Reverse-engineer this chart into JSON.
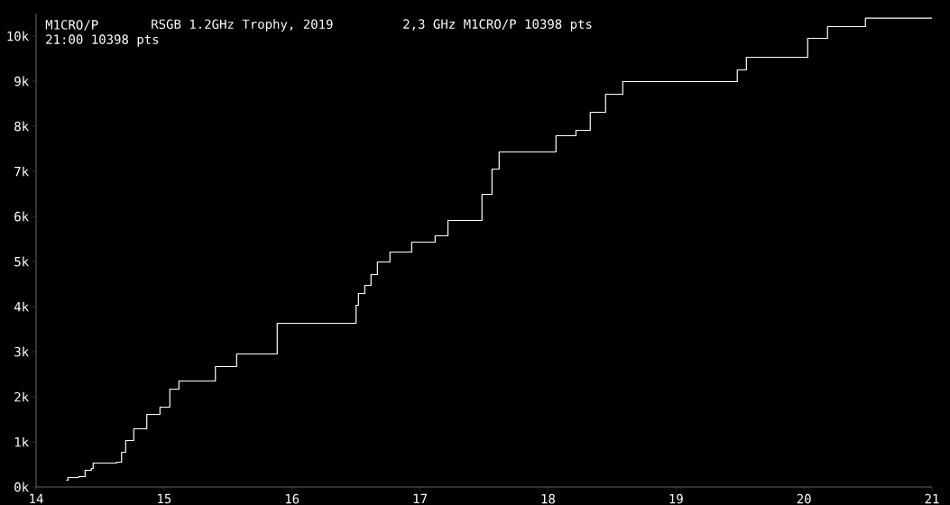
{
  "chart_data": {
    "type": "step",
    "title": "RSGB 1.2GHz Trophy, 2019",
    "annotations": [
      "M1CRO/P",
      "2,3 GHz M1CRO/P 10398 pts",
      "21:00 10398 pts"
    ],
    "x": [
      14.235,
      14.249,
      14.333,
      14.383,
      14.432,
      14.446,
      14.63,
      14.668,
      14.7,
      14.763,
      14.865,
      14.968,
      15.045,
      15.116,
      15.401,
      15.567,
      15.884,
      16.5,
      16.519,
      16.568,
      16.617,
      16.667,
      16.765,
      16.935,
      17.118,
      17.218,
      17.484,
      17.562,
      17.618,
      18.062,
      18.218,
      18.33,
      18.45,
      18.584,
      19.479,
      19.55,
      20.029,
      20.184,
      20.48,
      21
    ],
    "series": [
      {
        "color": "#ffffff",
        "values": [
          0.15,
          0.21,
          0.23,
          0.37,
          0.41,
          0.53,
          0.55,
          0.77,
          1.03,
          1.29,
          1.61,
          1.77,
          2.17,
          2.35,
          2.67,
          2.95,
          3.63,
          4.03,
          4.29,
          4.47,
          4.71,
          4.99,
          5.21,
          5.43,
          5.57,
          5.91,
          6.49,
          7.05,
          7.43,
          7.79,
          7.91,
          8.31,
          8.71,
          8.99,
          9.25,
          9.53,
          9.95,
          10.21,
          10.398,
          10.398
        ]
      }
    ],
    "xlim": [
      14,
      21
    ],
    "ylim": [
      0,
      10.5
    ],
    "xticks": [
      14,
      15,
      16,
      17,
      18,
      19,
      20,
      21
    ],
    "yticks": [
      {
        "value": 0,
        "label": "0k"
      },
      {
        "value": 1,
        "label": "1k"
      },
      {
        "value": 2,
        "label": "2k"
      },
      {
        "value": 3,
        "label": "3k"
      },
      {
        "value": 4,
        "label": "4k"
      },
      {
        "value": 5,
        "label": "5k"
      },
      {
        "value": 6,
        "label": "6k"
      },
      {
        "value": 7,
        "label": "7k"
      },
      {
        "value": 8,
        "label": "8k"
      },
      {
        "value": 9,
        "label": "9k"
      },
      {
        "value": 10,
        "label": "10k"
      }
    ],
    "grid": false,
    "marker": "none",
    "line_style": "solid"
  }
}
